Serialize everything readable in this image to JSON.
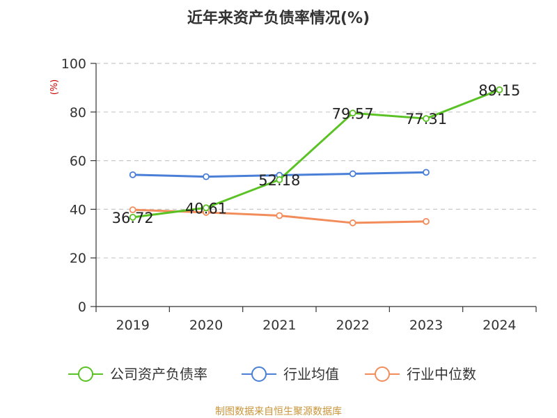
{
  "chart_data": {
    "type": "line",
    "title": "近年来资产负债率情况(%)",
    "ylabel": "(%)",
    "xlabel": "",
    "ylim": [
      0,
      100
    ],
    "yticks": [
      0,
      20,
      40,
      60,
      80,
      100
    ],
    "categories": [
      "2019",
      "2020",
      "2021",
      "2022",
      "2023",
      "2024"
    ],
    "grid": "horizontal dashed",
    "legend_position": "bottom",
    "series": [
      {
        "name": "公司资产负债率",
        "color": "#5bc225",
        "values": [
          36.72,
          40.61,
          52.18,
          79.57,
          77.31,
          89.15
        ],
        "labels": [
          "36.72",
          "40.61",
          "52.18",
          "79.57",
          "77.31",
          "89.15"
        ]
      },
      {
        "name": "行业均值",
        "color": "#4a7fd8",
        "values": [
          54.2,
          53.4,
          54.0,
          54.6,
          55.2,
          null
        ]
      },
      {
        "name": "行业中位数",
        "color": "#f28c5b",
        "values": [
          39.8,
          38.7,
          37.4,
          34.4,
          35.0,
          null
        ]
      }
    ]
  },
  "footer": {
    "source": "制图数据来自恒生聚源数据库"
  }
}
